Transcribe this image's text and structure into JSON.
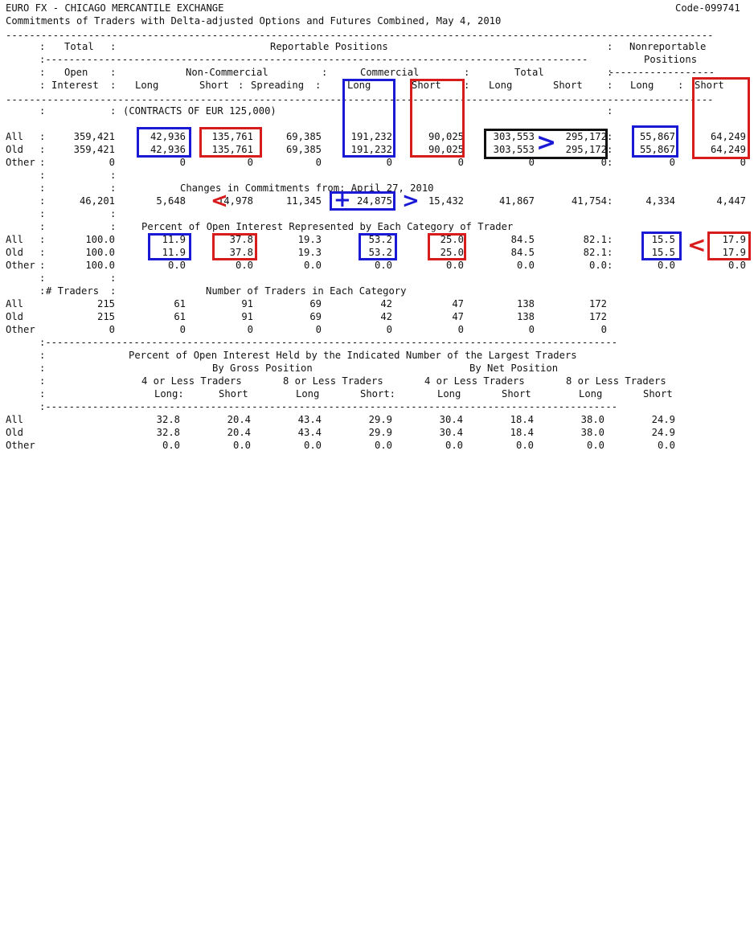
{
  "header": {
    "title": "EURO FX - CHICAGO MERCANTILE EXCHANGE",
    "code": "Code-099741",
    "subtitle": "Commitments of Traders with Delta-adjusted Options and Futures Combined, May 4, 2010"
  },
  "columns": {
    "total_label": "Total",
    "reportable": "Reportable Positions",
    "nonreportable_1": "Nonreportable",
    "nonreportable_2": "Positions",
    "open": "Open",
    "interest": "Interest",
    "noncommercial": "Non-Commercial",
    "commercial": "Commercial",
    "total": "Total",
    "long": "Long",
    "short": "Short",
    "spreading": "Spreading"
  },
  "contracts_note": "(CONTRACTS OF EUR 125,000)",
  "row_labels": {
    "all": "All",
    "old": "Old",
    "other": "Other"
  },
  "positions": {
    "all": [
      "359,421",
      "42,936",
      "135,761",
      "69,385",
      "191,232",
      "90,025",
      "303,553",
      "295,172",
      "55,867",
      "64,249"
    ],
    "old": [
      "359,421",
      "42,936",
      "135,761",
      "69,385",
      "191,232",
      "90,025",
      "303,553",
      "295,172",
      "55,867",
      "64,249"
    ],
    "other": [
      "0",
      "0",
      "0",
      "0",
      "0",
      "0",
      "0",
      "0",
      "0",
      "0"
    ]
  },
  "changes": {
    "title": "Changes in Commitments from: April 27, 2010",
    "values": [
      "46,201",
      "5,648",
      "14,978",
      "11,345",
      "24,875",
      "15,432",
      "41,867",
      "41,754",
      "4,334",
      "4,447"
    ]
  },
  "percent": {
    "title": "Percent of Open Interest Represented by Each Category of Trader",
    "all": [
      "100.0",
      "11.9",
      "37.8",
      "19.3",
      "53.2",
      "25.0",
      "84.5",
      "82.1",
      "15.5",
      "17.9"
    ],
    "old": [
      "100.0",
      "11.9",
      "37.8",
      "19.3",
      "53.2",
      "25.0",
      "84.5",
      "82.1",
      "15.5",
      "17.9"
    ],
    "other": [
      "100.0",
      "0.0",
      "0.0",
      "0.0",
      "0.0",
      "0.0",
      "0.0",
      "0.0",
      "0.0",
      "0.0"
    ]
  },
  "traders": {
    "header_label": "# Traders",
    "title": "Number of Traders in Each Category",
    "all": [
      "215",
      "61",
      "91",
      "69",
      "42",
      "47",
      "138",
      "172"
    ],
    "old": [
      "215",
      "61",
      "91",
      "69",
      "42",
      "47",
      "138",
      "172"
    ],
    "other": [
      "0",
      "0",
      "0",
      "0",
      "0",
      "0",
      "0",
      "0"
    ]
  },
  "largest": {
    "title": "Percent of Open Interest Held by the Indicated Number of the Largest Traders",
    "gross": "By Gross Position",
    "net": "By Net Position",
    "four_or_less": "4 or Less Traders",
    "eight_or_less": "8 or Less Traders",
    "long_colon": "Long:",
    "long": "Long",
    "short": "Short",
    "short_colon": "Short:",
    "all": [
      "32.8",
      "20.4",
      "43.4",
      "29.9",
      "30.4",
      "18.4",
      "38.0",
      "24.9"
    ],
    "old": [
      "32.8",
      "20.4",
      "43.4",
      "29.9",
      "30.4",
      "18.4",
      "38.0",
      "24.9"
    ],
    "other": [
      "0.0",
      "0.0",
      "0.0",
      "0.0",
      "0.0",
      "0.0",
      "0.0",
      "0.0"
    ]
  },
  "annotations": {
    "less_than": "<",
    "greater_than": ">",
    "plus": "+",
    "mark_colors": {
      "blue": "#1a1ad6",
      "red": "#d81c1c",
      "black": "#111111"
    }
  }
}
